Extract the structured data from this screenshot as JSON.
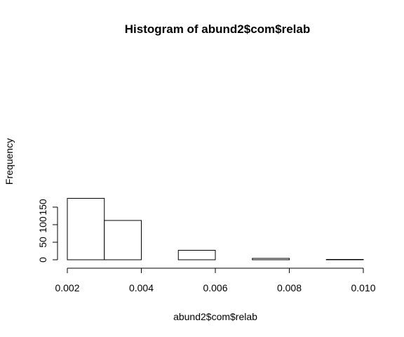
{
  "chart_data": {
    "type": "bar",
    "title": "Histogram of abund2$com$relab",
    "xlabel": "abund2$com$relab",
    "ylabel": "Frequency",
    "bins": [
      {
        "start": 0.002,
        "end": 0.003,
        "count": 175
      },
      {
        "start": 0.003,
        "end": 0.004,
        "count": 112
      },
      {
        "start": 0.004,
        "end": 0.005,
        "count": 0
      },
      {
        "start": 0.005,
        "end": 0.006,
        "count": 27
      },
      {
        "start": 0.006,
        "end": 0.007,
        "count": 0
      },
      {
        "start": 0.007,
        "end": 0.008,
        "count": 4
      },
      {
        "start": 0.008,
        "end": 0.009,
        "count": 0
      },
      {
        "start": 0.009,
        "end": 0.01,
        "count": 1
      }
    ],
    "xlim": [
      0.002,
      0.01
    ],
    "ylim": [
      0,
      175
    ],
    "xticks": [
      "0.002",
      "0.004",
      "0.006",
      "0.008",
      "0.010"
    ],
    "yticks": [
      "0",
      "50",
      "100",
      "150"
    ],
    "grid": false,
    "bar_fill": "#ffffff",
    "bar_stroke": "#000000"
  }
}
